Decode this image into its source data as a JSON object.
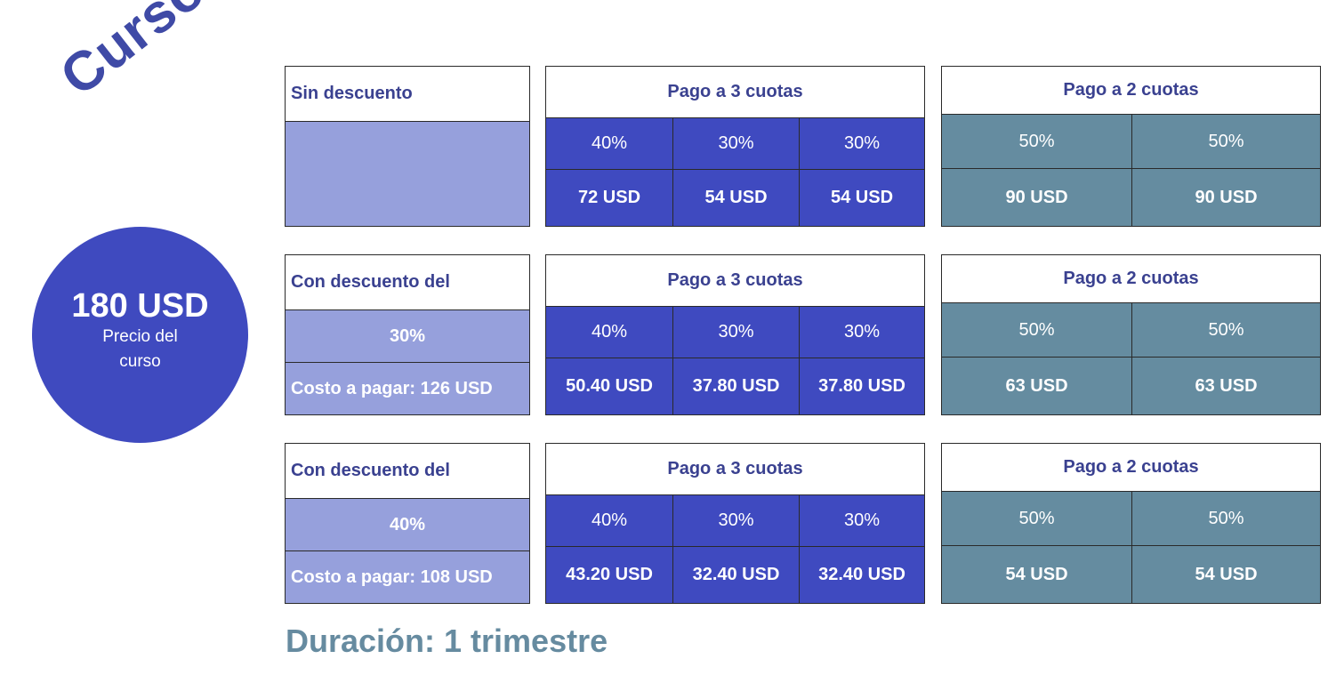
{
  "title": "Cursos",
  "price_badge": {
    "price": "180 USD",
    "label": "Precio del curso"
  },
  "rows": [
    {
      "discount_header": "Sin descuento",
      "discount_percent": "",
      "discount_cost": "",
      "three": {
        "header": "Pago a 3 cuotas",
        "percents": [
          "40%",
          "30%",
          "30%"
        ],
        "amounts": [
          "72 USD",
          "54 USD",
          "54 USD"
        ]
      },
      "two": {
        "header": "Pago a 2 cuotas",
        "percents": [
          "50%",
          "50%"
        ],
        "amounts": [
          "90 USD",
          "90 USD"
        ]
      }
    },
    {
      "discount_header": "Con descuento del",
      "discount_percent": "30%",
      "discount_cost": "Costo a pagar: 126 USD",
      "three": {
        "header": "Pago a 3 cuotas",
        "percents": [
          "40%",
          "30%",
          "30%"
        ],
        "amounts": [
          "50.40 USD",
          "37.80 USD",
          "37.80 USD"
        ]
      },
      "two": {
        "header": "Pago a 2 cuotas",
        "percents": [
          "50%",
          "50%"
        ],
        "amounts": [
          "63 USD",
          "63 USD"
        ]
      }
    },
    {
      "discount_header": "Con descuento del",
      "discount_percent": "40%",
      "discount_cost": "Costo a pagar: 108 USD",
      "three": {
        "header": "Pago a 3 cuotas",
        "percents": [
          "40%",
          "30%",
          "30%"
        ],
        "amounts": [
          "43.20 USD",
          "32.40 USD",
          "32.40 USD"
        ]
      },
      "two": {
        "header": "Pago a 2 cuotas",
        "percents": [
          "50%",
          "50%"
        ],
        "amounts": [
          "54 USD",
          "54 USD"
        ]
      }
    }
  ],
  "duration": "Duración: 1 trimestre",
  "colors": {
    "primary": "#3f4ac0",
    "light": "#96a0dc",
    "teal": "#658ca0",
    "header_text": "#3a4190"
  }
}
